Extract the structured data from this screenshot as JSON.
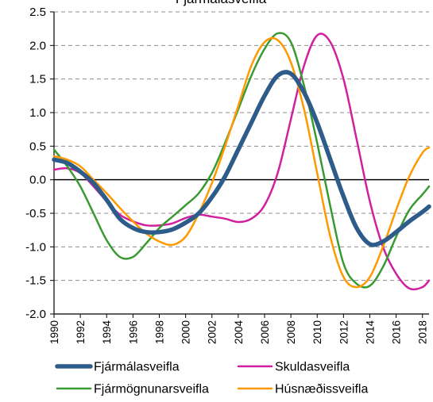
{
  "chart_data": {
    "type": "line",
    "title": "Fjármálasveifla",
    "xlabel": "",
    "ylabel": "",
    "xlim": [
      1990,
      2018.5
    ],
    "ylim": [
      -2.0,
      2.5
    ],
    "yticks": [
      2.5,
      2.0,
      1.5,
      1.0,
      0.5,
      0.0,
      -0.5,
      -1.0,
      -1.5,
      -2.0
    ],
    "ytick_labels": [
      "2.5",
      "2.0",
      "1.5",
      "1.0",
      "0.5",
      "0.0",
      "-0.5",
      "-1.0",
      "-1.5",
      "-2.0"
    ],
    "xticks": [
      1990,
      1992,
      1994,
      1996,
      1998,
      2000,
      2002,
      2004,
      2006,
      2008,
      2010,
      2012,
      2014,
      2016,
      2018
    ],
    "xtick_labels": [
      "1990",
      "1992",
      "1994",
      "1996",
      "1998",
      "2000",
      "2002",
      "2004",
      "2006",
      "2008",
      "2010",
      "2012",
      "2014",
      "2016",
      "2018"
    ],
    "grid": "horizontal dashed",
    "legend_position": "bottom",
    "series": [
      {
        "name": "Fjármálasveifla",
        "color": "#2E5C8A",
        "x": [
          1990,
          1991,
          1992,
          1993,
          1994,
          1995,
          1996,
          1997,
          1998,
          1999,
          2000,
          2001,
          2002,
          2003,
          2004,
          2005,
          2006,
          2007,
          2008,
          2009,
          2010,
          2011,
          2012,
          2013,
          2014,
          2015,
          2016,
          2017,
          2018,
          2018.5
        ],
        "y": [
          0.3,
          0.25,
          0.12,
          -0.05,
          -0.3,
          -0.58,
          -0.72,
          -0.78,
          -0.78,
          -0.74,
          -0.64,
          -0.5,
          -0.26,
          0.05,
          0.45,
          0.85,
          1.25,
          1.55,
          1.58,
          1.3,
          0.85,
          0.3,
          -0.25,
          -0.72,
          -0.96,
          -0.92,
          -0.78,
          -0.62,
          -0.48,
          -0.4
        ]
      },
      {
        "name": "Skuldasveifla",
        "color": "#D020A0",
        "x": [
          1990,
          1991,
          1992,
          1993,
          1994,
          1995,
          1996,
          1997,
          1998,
          1999,
          2000,
          2001,
          2002,
          2003,
          2004,
          2005,
          2006,
          2007,
          2008,
          2009,
          2010,
          2011,
          2012,
          2013,
          2014,
          2015,
          2016,
          2017,
          2018,
          2018.5
        ],
        "y": [
          0.15,
          0.17,
          0.1,
          -0.1,
          -0.32,
          -0.52,
          -0.62,
          -0.68,
          -0.68,
          -0.65,
          -0.57,
          -0.52,
          -0.55,
          -0.58,
          -0.63,
          -0.58,
          -0.38,
          0.1,
          0.9,
          1.7,
          2.15,
          2.05,
          1.5,
          0.6,
          -0.32,
          -1.0,
          -1.4,
          -1.62,
          -1.6,
          -1.5
        ]
      },
      {
        "name": "Fjármögnunarsveifla",
        "color": "#3A9A32",
        "x": [
          1990,
          1991,
          1992,
          1993,
          1994,
          1995,
          1996,
          1997,
          1998,
          1999,
          2000,
          2001,
          2002,
          2003,
          2004,
          2005,
          2006,
          2007,
          2008,
          2009,
          2010,
          2011,
          2012,
          2013,
          2014,
          2015,
          2016,
          2017,
          2018,
          2018.5
        ],
        "y": [
          0.45,
          0.2,
          -0.1,
          -0.5,
          -0.9,
          -1.15,
          -1.15,
          -0.95,
          -0.72,
          -0.55,
          -0.38,
          -0.2,
          0.1,
          0.55,
          1.05,
          1.55,
          1.95,
          2.18,
          2.05,
          1.4,
          0.55,
          -0.4,
          -1.25,
          -1.55,
          -1.58,
          -1.3,
          -0.85,
          -0.45,
          -0.22,
          -0.1
        ]
      },
      {
        "name": "Húsnæðissveifla",
        "color": "#FF9900",
        "x": [
          1990,
          1991,
          1992,
          1993,
          1994,
          1995,
          1996,
          1997,
          1998,
          1999,
          2000,
          2001,
          2002,
          2003,
          2004,
          2005,
          2006,
          2007,
          2008,
          2009,
          2010,
          2011,
          2012,
          2013,
          2014,
          2015,
          2016,
          2017,
          2018,
          2018.5
        ],
        "y": [
          0.35,
          0.3,
          0.2,
          0.0,
          -0.2,
          -0.42,
          -0.62,
          -0.8,
          -0.92,
          -0.97,
          -0.85,
          -0.5,
          -0.05,
          0.5,
          1.1,
          1.7,
          2.05,
          2.08,
          1.75,
          1.05,
          0.1,
          -0.85,
          -1.45,
          -1.6,
          -1.45,
          -1.0,
          -0.45,
          0.05,
          0.4,
          0.48
        ]
      }
    ]
  }
}
